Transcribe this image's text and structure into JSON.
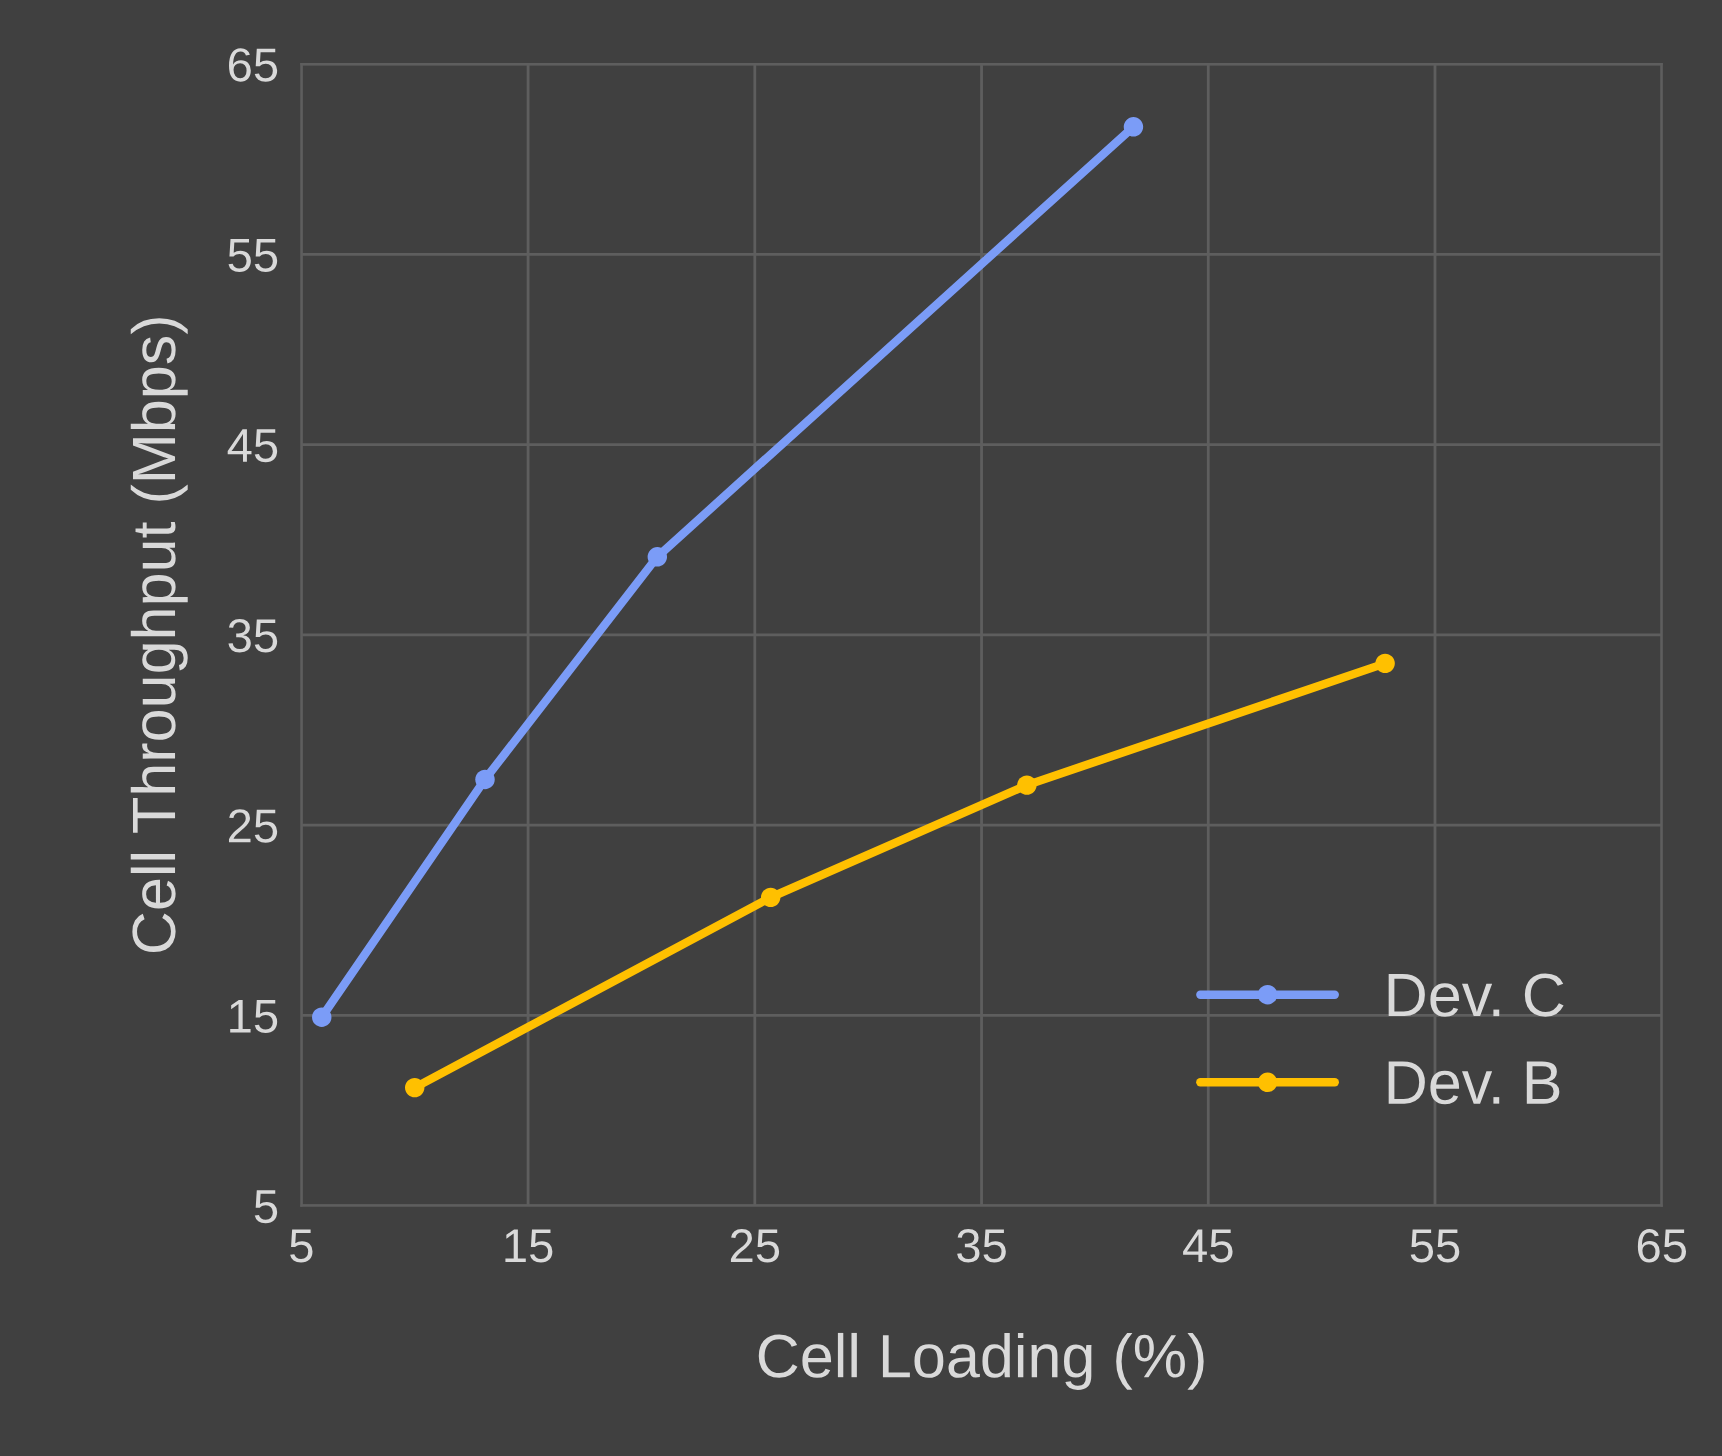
{
  "chart_data": {
    "type": "line",
    "xlabel": "Cell Loading (%)",
    "ylabel": "Cell Throughput (Mbps)",
    "series": [
      {
        "name": "Dev. C",
        "color": "#7b9cf7",
        "x": [
          5.9,
          13.1,
          20.7,
          41.7
        ],
        "values": [
          14.9,
          27.4,
          39.1,
          61.7
        ]
      },
      {
        "name": "Dev. B",
        "color": "#ffc000",
        "x": [
          10.0,
          25.7,
          37.0,
          52.8
        ],
        "values": [
          11.2,
          21.2,
          27.1,
          33.5
        ]
      }
    ],
    "xlim": [
      5,
      65
    ],
    "xticks": [
      5,
      15,
      25,
      35,
      45,
      55,
      65
    ],
    "ylim": [
      5,
      65
    ],
    "yticks": [
      5,
      15,
      25,
      35,
      45,
      55,
      65
    ],
    "grid": true,
    "legend": "bottom right",
    "marker": "circle",
    "line_style": "solid"
  }
}
